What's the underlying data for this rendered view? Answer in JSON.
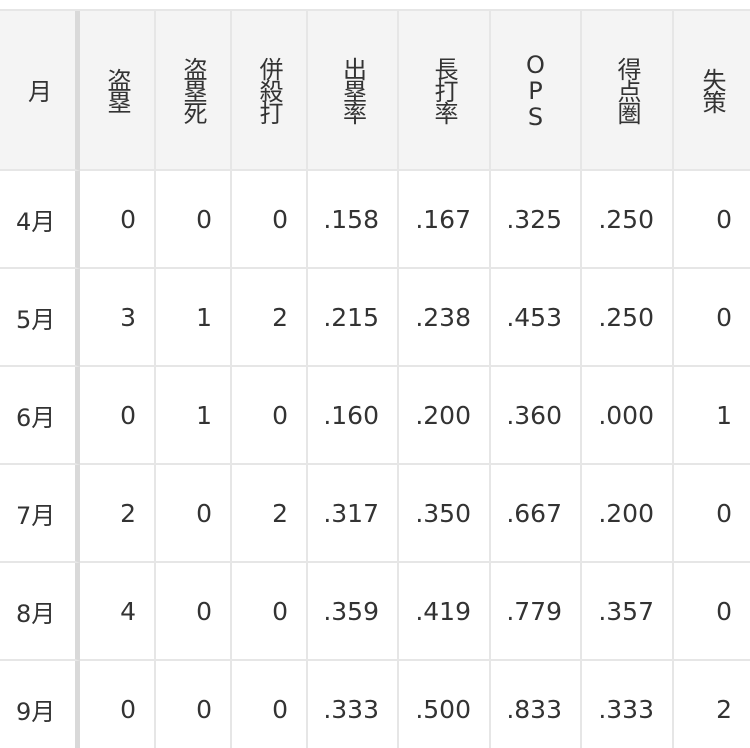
{
  "table": {
    "header": [
      "月",
      "盗塁",
      "盗塁死",
      "併殺打",
      "出塁率",
      "長打率",
      "OPS",
      "得点圏",
      "失策"
    ],
    "rows": [
      [
        "4月",
        "0",
        "0",
        "0",
        ".158",
        ".167",
        ".325",
        ".250",
        "0"
      ],
      [
        "5月",
        "3",
        "1",
        "2",
        ".215",
        ".238",
        ".453",
        ".250",
        "0"
      ],
      [
        "6月",
        "0",
        "1",
        "0",
        ".160",
        ".200",
        ".360",
        ".000",
        "1"
      ],
      [
        "7月",
        "2",
        "0",
        "2",
        ".317",
        ".350",
        ".667",
        ".200",
        "0"
      ],
      [
        "8月",
        "4",
        "0",
        "0",
        ".359",
        ".419",
        ".779",
        ".357",
        "0"
      ],
      [
        "9月",
        "0",
        "0",
        "0",
        ".333",
        ".500",
        ".833",
        ".333",
        "2"
      ]
    ]
  }
}
